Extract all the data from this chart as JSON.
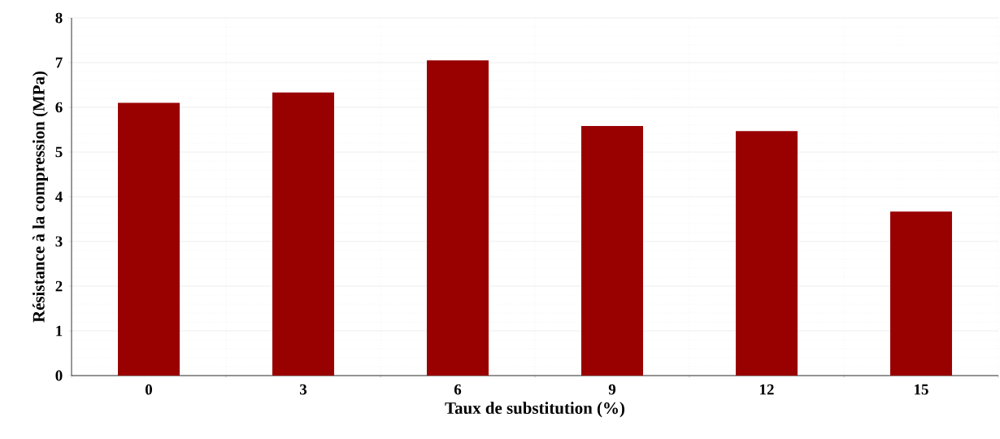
{
  "chart_data": {
    "type": "bar",
    "xlabel": "Taux de substitution (%)",
    "ylabel": "Résistance à la compression (MPa)",
    "categories": [
      "0",
      "3",
      "6",
      "9",
      "12",
      "15"
    ],
    "values": [
      6.1,
      6.33,
      7.05,
      5.58,
      5.47,
      3.67
    ],
    "color": "#990000",
    "ylim": [
      0,
      8
    ],
    "yticks": [
      0,
      1,
      2,
      3,
      4,
      5,
      6,
      7,
      8
    ],
    "grid": true
  }
}
